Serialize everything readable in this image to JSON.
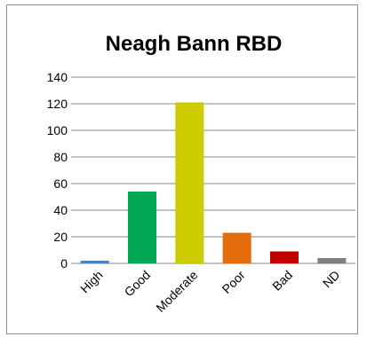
{
  "chart_data": {
    "type": "bar",
    "title": "Neagh Bann RBD",
    "xlabel": "",
    "ylabel": "",
    "ylim": [
      0,
      140
    ],
    "yticks": [
      0,
      20,
      40,
      60,
      80,
      100,
      120,
      140
    ],
    "grid": true,
    "legend": "none",
    "categories": [
      "High",
      "Good",
      "Moderate",
      "Poor",
      "Bad",
      "ND"
    ],
    "values": [
      2,
      54,
      121,
      23,
      9,
      4
    ],
    "colors": [
      "#4f81bd",
      "#00a651",
      "#cccc00",
      "#e46c0a",
      "#c00000",
      "#7f7f7f"
    ]
  }
}
